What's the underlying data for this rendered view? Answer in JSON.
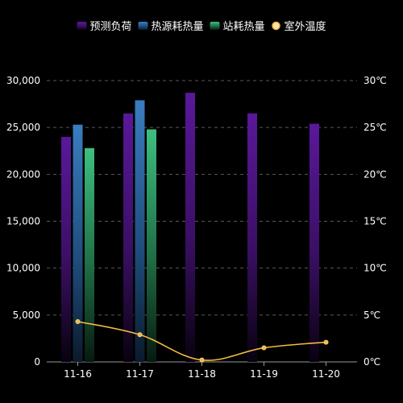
{
  "chart_data": {
    "type": "bar",
    "categories": [
      "11-16",
      "11-17",
      "11-18",
      "11-19",
      "11-20"
    ],
    "legend": {
      "placement": "top-center"
    },
    "grid": true,
    "y_left": {
      "ticks": [
        "0",
        "5,000",
        "10,000",
        "15,000",
        "20,000",
        "25,000",
        "30,000"
      ],
      "ylim": [
        0,
        30000
      ]
    },
    "y_right": {
      "ticks": [
        "0℃",
        "5℃",
        "10℃",
        "15℃",
        "20℃",
        "25℃",
        "30℃"
      ],
      "ylim": [
        0,
        30
      ]
    },
    "series": [
      {
        "name": "预测负荷",
        "type": "bar",
        "axis": "left",
        "color": "#6a1b9a",
        "values": [
          24000,
          26500,
          28700,
          26500,
          25400
        ]
      },
      {
        "name": "热源耗热量",
        "type": "bar",
        "axis": "left",
        "color": "#2f6fad",
        "values": [
          25300,
          27900,
          null,
          null,
          null
        ]
      },
      {
        "name": "站耗热量",
        "type": "bar",
        "axis": "left",
        "color": "#3dbf7f",
        "values": [
          22800,
          24800,
          null,
          null,
          null
        ]
      },
      {
        "name": "室外温度",
        "type": "line",
        "axis": "right",
        "color": "#f5b942",
        "values": [
          4.3,
          2.9,
          0.2,
          1.5,
          2.1
        ]
      }
    ]
  }
}
